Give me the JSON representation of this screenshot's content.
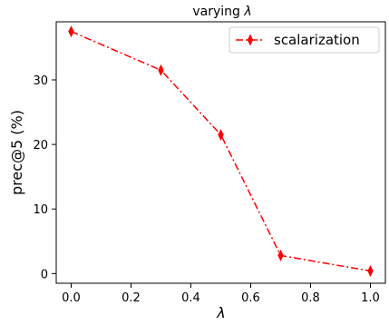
{
  "chart_data": {
    "type": "line",
    "title_prefix": "varying ",
    "title_symbol": "λ",
    "xlabel": "λ",
    "ylabel": "prec@5 (%)",
    "xlim": [
      -0.05,
      1.05
    ],
    "ylim": [
      -1.5,
      39
    ],
    "xticks": [
      0.0,
      0.2,
      0.4,
      0.6,
      0.8,
      1.0
    ],
    "xtick_labels": [
      "0.0",
      "0.2",
      "0.4",
      "0.6",
      "0.8",
      "1.0"
    ],
    "yticks": [
      0,
      10,
      20,
      30
    ],
    "ytick_labels": [
      "0",
      "10",
      "20",
      "30"
    ],
    "grid": false,
    "legend_position": "top-right",
    "series": [
      {
        "name": "scalarization",
        "color": "#ff0000",
        "line_style": "dash-dot",
        "marker": "thin-diamond",
        "x": [
          0.0,
          0.3,
          0.5,
          0.7,
          1.0
        ],
        "y": [
          37.5,
          31.5,
          21.5,
          2.8,
          0.4
        ]
      }
    ]
  }
}
